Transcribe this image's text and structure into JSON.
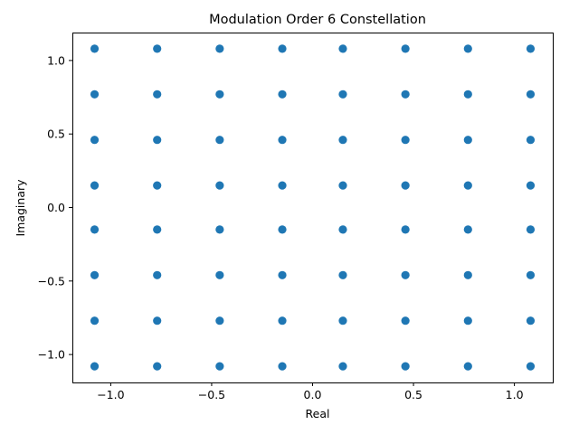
{
  "chart_data": {
    "type": "scatter",
    "title": "Modulation Order 6 Constellation",
    "xlabel": "Real",
    "ylabel": "Imaginary",
    "xlim": [
      -1.19,
      1.19
    ],
    "ylim": [
      -1.19,
      1.19
    ],
    "grid": false,
    "marker_color": "#1f77b4",
    "x_ticks": [
      -1.0,
      -0.5,
      0.0,
      0.5,
      1.0
    ],
    "y_ticks": [
      -1.0,
      -0.5,
      0.0,
      0.5,
      1.0
    ],
    "x_tick_labels": [
      "−1.0",
      "−0.5",
      "0.0",
      "0.5",
      "1.0"
    ],
    "y_tick_labels": [
      "−1.0",
      "−0.5",
      "0.0",
      "0.5",
      "1.0"
    ],
    "levels": [
      -1.08,
      -0.77,
      -0.46,
      -0.15,
      0.15,
      0.46,
      0.77,
      1.08
    ],
    "points": [
      [
        -1.08,
        1.08
      ],
      [
        -0.77,
        1.08
      ],
      [
        -0.46,
        1.08
      ],
      [
        -0.15,
        1.08
      ],
      [
        0.15,
        1.08
      ],
      [
        0.46,
        1.08
      ],
      [
        0.77,
        1.08
      ],
      [
        1.08,
        1.08
      ],
      [
        -1.08,
        0.77
      ],
      [
        -0.77,
        0.77
      ],
      [
        -0.46,
        0.77
      ],
      [
        -0.15,
        0.77
      ],
      [
        0.15,
        0.77
      ],
      [
        0.46,
        0.77
      ],
      [
        0.77,
        0.77
      ],
      [
        1.08,
        0.77
      ],
      [
        -1.08,
        0.46
      ],
      [
        -0.77,
        0.46
      ],
      [
        -0.46,
        0.46
      ],
      [
        -0.15,
        0.46
      ],
      [
        0.15,
        0.46
      ],
      [
        0.46,
        0.46
      ],
      [
        0.77,
        0.46
      ],
      [
        1.08,
        0.46
      ],
      [
        -1.08,
        0.15
      ],
      [
        -0.77,
        0.15
      ],
      [
        -0.46,
        0.15
      ],
      [
        -0.15,
        0.15
      ],
      [
        0.15,
        0.15
      ],
      [
        0.46,
        0.15
      ],
      [
        0.77,
        0.15
      ],
      [
        1.08,
        0.15
      ],
      [
        -1.08,
        -0.15
      ],
      [
        -0.77,
        -0.15
      ],
      [
        -0.46,
        -0.15
      ],
      [
        -0.15,
        -0.15
      ],
      [
        0.15,
        -0.15
      ],
      [
        0.46,
        -0.15
      ],
      [
        0.77,
        -0.15
      ],
      [
        1.08,
        -0.15
      ],
      [
        -1.08,
        -0.46
      ],
      [
        -0.77,
        -0.46
      ],
      [
        -0.46,
        -0.46
      ],
      [
        -0.15,
        -0.46
      ],
      [
        0.15,
        -0.46
      ],
      [
        0.46,
        -0.46
      ],
      [
        0.77,
        -0.46
      ],
      [
        1.08,
        -0.46
      ],
      [
        -1.08,
        -0.77
      ],
      [
        -0.77,
        -0.77
      ],
      [
        -0.46,
        -0.77
      ],
      [
        -0.15,
        -0.77
      ],
      [
        0.15,
        -0.77
      ],
      [
        0.46,
        -0.77
      ],
      [
        0.77,
        -0.77
      ],
      [
        1.08,
        -0.77
      ],
      [
        -1.08,
        -1.08
      ],
      [
        -0.77,
        -1.08
      ],
      [
        -0.46,
        -1.08
      ],
      [
        -0.15,
        -1.08
      ],
      [
        0.15,
        -1.08
      ],
      [
        0.46,
        -1.08
      ],
      [
        0.77,
        -1.08
      ],
      [
        1.08,
        -1.08
      ]
    ]
  }
}
